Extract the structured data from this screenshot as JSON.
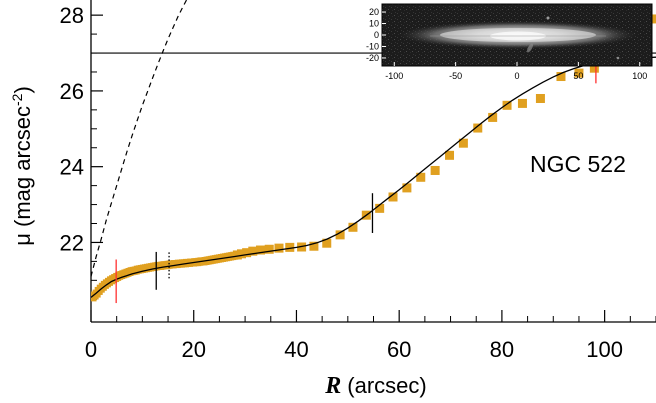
{
  "chart_data": {
    "type": "scatter",
    "xlabel_symbol": "R",
    "xlabel_unit": "(arcsec)",
    "ylabel_main": "μ (mag arcsec",
    "ylabel_exp": "-2",
    "ylabel_close": ")",
    "annotation": "NGC 522",
    "xlim": [
      0,
      110
    ],
    "ylim": [
      28.4,
      19.9
    ],
    "y_inverted": true,
    "x_ticks": [
      "0",
      "20",
      "40",
      "60",
      "80",
      "100"
    ],
    "y_ticks": [
      "22",
      "24",
      "26",
      "28"
    ],
    "marker_color": "#e0a020",
    "sky_level": 27.0,
    "series": [
      {
        "kind": "observed",
        "x": [
          0.3,
          0.7,
          1.1,
          1.5,
          1.9,
          2.3,
          2.7,
          3.1,
          3.5,
          3.9,
          4.3,
          4.7,
          5.1,
          5.5,
          5.9,
          6.3,
          6.7,
          7.1,
          7.5,
          7.9,
          8.3,
          8.7,
          9.1,
          9.5,
          9.9,
          10.3,
          10.7,
          11.1,
          11.5,
          11.9,
          12.3,
          12.7,
          13.1,
          13.5,
          13.9,
          14.3,
          14.7,
          15.1,
          15.5,
          15.9,
          16.3,
          16.7,
          17.1,
          17.5,
          17.9,
          18.3,
          18.7,
          19.1,
          19.5,
          19.9,
          20.3,
          20.7,
          21.1,
          21.5,
          21.9,
          22.3,
          22.7,
          23.1,
          23.5,
          23.9,
          24.3,
          24.7,
          25.1,
          25.5,
          25.9,
          26.3,
          26.7,
          27.1,
          27.5,
          27.9,
          28.5,
          29.3,
          30.3,
          31.5,
          33.0,
          34.7,
          36.6,
          38.7,
          41.0,
          43.4,
          45.9,
          48.5,
          51.0,
          53.6,
          56.2,
          58.8,
          61.5,
          64.2,
          67.0,
          69.8,
          72.5,
          75.3,
          78.2,
          81.0,
          84.0,
          87.5,
          91.5,
          95.0,
          98.0,
          102.0,
          106.0,
          110.0
        ],
        "y": [
          20.55,
          20.6,
          20.65,
          20.72,
          20.78,
          20.83,
          20.88,
          20.92,
          20.96,
          21.0,
          21.03,
          21.06,
          21.09,
          21.12,
          21.14,
          21.16,
          21.18,
          21.2,
          21.22,
          21.24,
          21.25,
          21.26,
          21.28,
          21.29,
          21.3,
          21.31,
          21.32,
          21.33,
          21.34,
          21.35,
          21.36,
          21.37,
          21.38,
          21.38,
          21.39,
          21.4,
          21.4,
          21.41,
          21.42,
          21.42,
          21.43,
          21.43,
          21.44,
          21.44,
          21.45,
          21.45,
          21.46,
          21.46,
          21.47,
          21.47,
          21.48,
          21.48,
          21.49,
          21.5,
          21.5,
          21.51,
          21.52,
          21.53,
          21.54,
          21.55,
          21.56,
          21.57,
          21.58,
          21.59,
          21.6,
          21.61,
          21.62,
          21.63,
          21.64,
          21.65,
          21.67,
          21.7,
          21.73,
          21.77,
          21.8,
          21.82,
          21.85,
          21.87,
          21.88,
          21.9,
          21.98,
          22.2,
          22.4,
          22.72,
          22.9,
          23.2,
          23.44,
          23.72,
          23.9,
          24.3,
          24.62,
          25.02,
          25.3,
          25.62,
          25.67,
          25.8,
          26.38,
          26.47,
          26.6,
          27.3,
          27.3,
          27.9
        ]
      },
      {
        "kind": "model_total",
        "x": [
          0,
          1,
          2,
          3,
          4,
          5,
          6,
          8,
          10,
          12,
          14,
          16,
          18,
          20,
          22,
          24,
          26,
          28,
          30,
          32,
          34,
          36,
          38,
          40,
          42,
          44,
          46,
          48,
          50,
          52,
          54,
          56,
          58,
          60,
          62,
          64,
          66,
          68,
          70,
          72,
          74,
          76,
          78,
          80,
          82,
          84,
          86,
          88,
          90,
          92,
          94,
          96,
          98,
          100,
          102,
          104,
          106,
          108,
          110
        ],
        "y": [
          20.55,
          20.66,
          20.78,
          20.88,
          20.97,
          21.03,
          21.08,
          21.17,
          21.24,
          21.3,
          21.35,
          21.39,
          21.43,
          21.47,
          21.51,
          21.55,
          21.59,
          21.63,
          21.67,
          21.71,
          21.75,
          21.79,
          21.83,
          21.87,
          21.92,
          21.99,
          22.09,
          22.22,
          22.38,
          22.56,
          22.76,
          22.97,
          23.18,
          23.39,
          23.61,
          23.83,
          24.05,
          24.27,
          24.49,
          24.71,
          24.93,
          25.15,
          25.36,
          25.56,
          25.75,
          25.92,
          26.08,
          26.23,
          26.37,
          26.49,
          26.59,
          26.67,
          26.73,
          26.78,
          26.82,
          26.85,
          26.87,
          26.88,
          26.89
        ]
      },
      {
        "kind": "model_bulge",
        "x": [
          0,
          1,
          2,
          3,
          4,
          5,
          6,
          7,
          8,
          9,
          10,
          11,
          12,
          13,
          14,
          15,
          16,
          17,
          18,
          18.6
        ],
        "y": [
          21.1,
          21.62,
          22.1,
          22.6,
          23.05,
          23.5,
          23.95,
          24.4,
          24.82,
          25.22,
          25.62,
          25.98,
          26.34,
          26.7,
          27.04,
          27.37,
          27.68,
          27.98,
          28.25,
          28.4
        ]
      }
    ],
    "vertical_markers": [
      {
        "x": 4.9,
        "color": "#ff3030",
        "style": "solid",
        "y_top": 20.4,
        "y_bottom": 21.55
      },
      {
        "x": 12.7,
        "color": "#000000",
        "style": "solid",
        "y_top": 20.75,
        "y_bottom": 21.75
      },
      {
        "x": 15.2,
        "color": "#000000",
        "style": "dotted",
        "y_top": 21.05,
        "y_bottom": 21.75
      },
      {
        "x": 54.8,
        "color": "#000000",
        "style": "solid",
        "y_top": 22.25,
        "y_bottom": 23.3
      },
      {
        "x": 98.3,
        "color": "#ff3030",
        "style": "solid",
        "y_top": 26.2,
        "y_bottom": 27.0
      }
    ],
    "inset": {
      "x_ticks": [
        "-100",
        "-50",
        "0",
        "50",
        "100"
      ],
      "y_ticks": [
        "20",
        "10",
        "0",
        "-10",
        "-20"
      ],
      "xlim": [
        -110,
        110
      ],
      "ylim": [
        -27,
        27
      ]
    }
  }
}
